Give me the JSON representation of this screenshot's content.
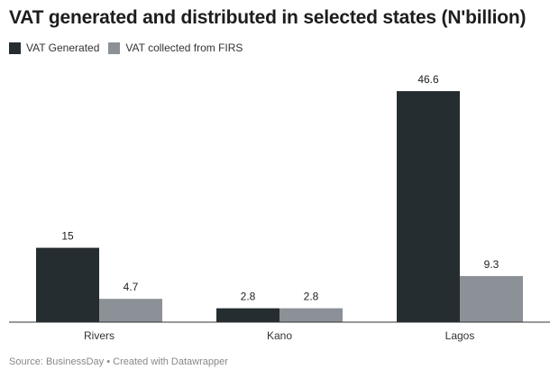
{
  "chart_data": {
    "type": "bar",
    "title": "VAT generated and distributed in selected states (N'billion)",
    "categories": [
      "Rivers",
      "Kano",
      "Lagos"
    ],
    "series": [
      {
        "name": "VAT Generated",
        "values": [
          15,
          2.8,
          46.6
        ],
        "labels": [
          "15",
          "2.8",
          "46.6"
        ],
        "color": "#262d31"
      },
      {
        "name": "VAT collected from FIRS",
        "values": [
          4.7,
          2.8,
          9.3
        ],
        "labels": [
          "4.7",
          "2.8",
          "9.3"
        ],
        "color": "#8b9196"
      }
    ],
    "xlabel": "",
    "ylabel": "",
    "ylim": [
      0,
      46.6
    ],
    "grid": false,
    "legend_position": "top-left"
  },
  "footer": {
    "source": "Source: BusinessDay • Created with Datawrapper"
  },
  "colors": {
    "baseline": "#333333",
    "value_label": "#222222",
    "axis_label": "#333333"
  }
}
